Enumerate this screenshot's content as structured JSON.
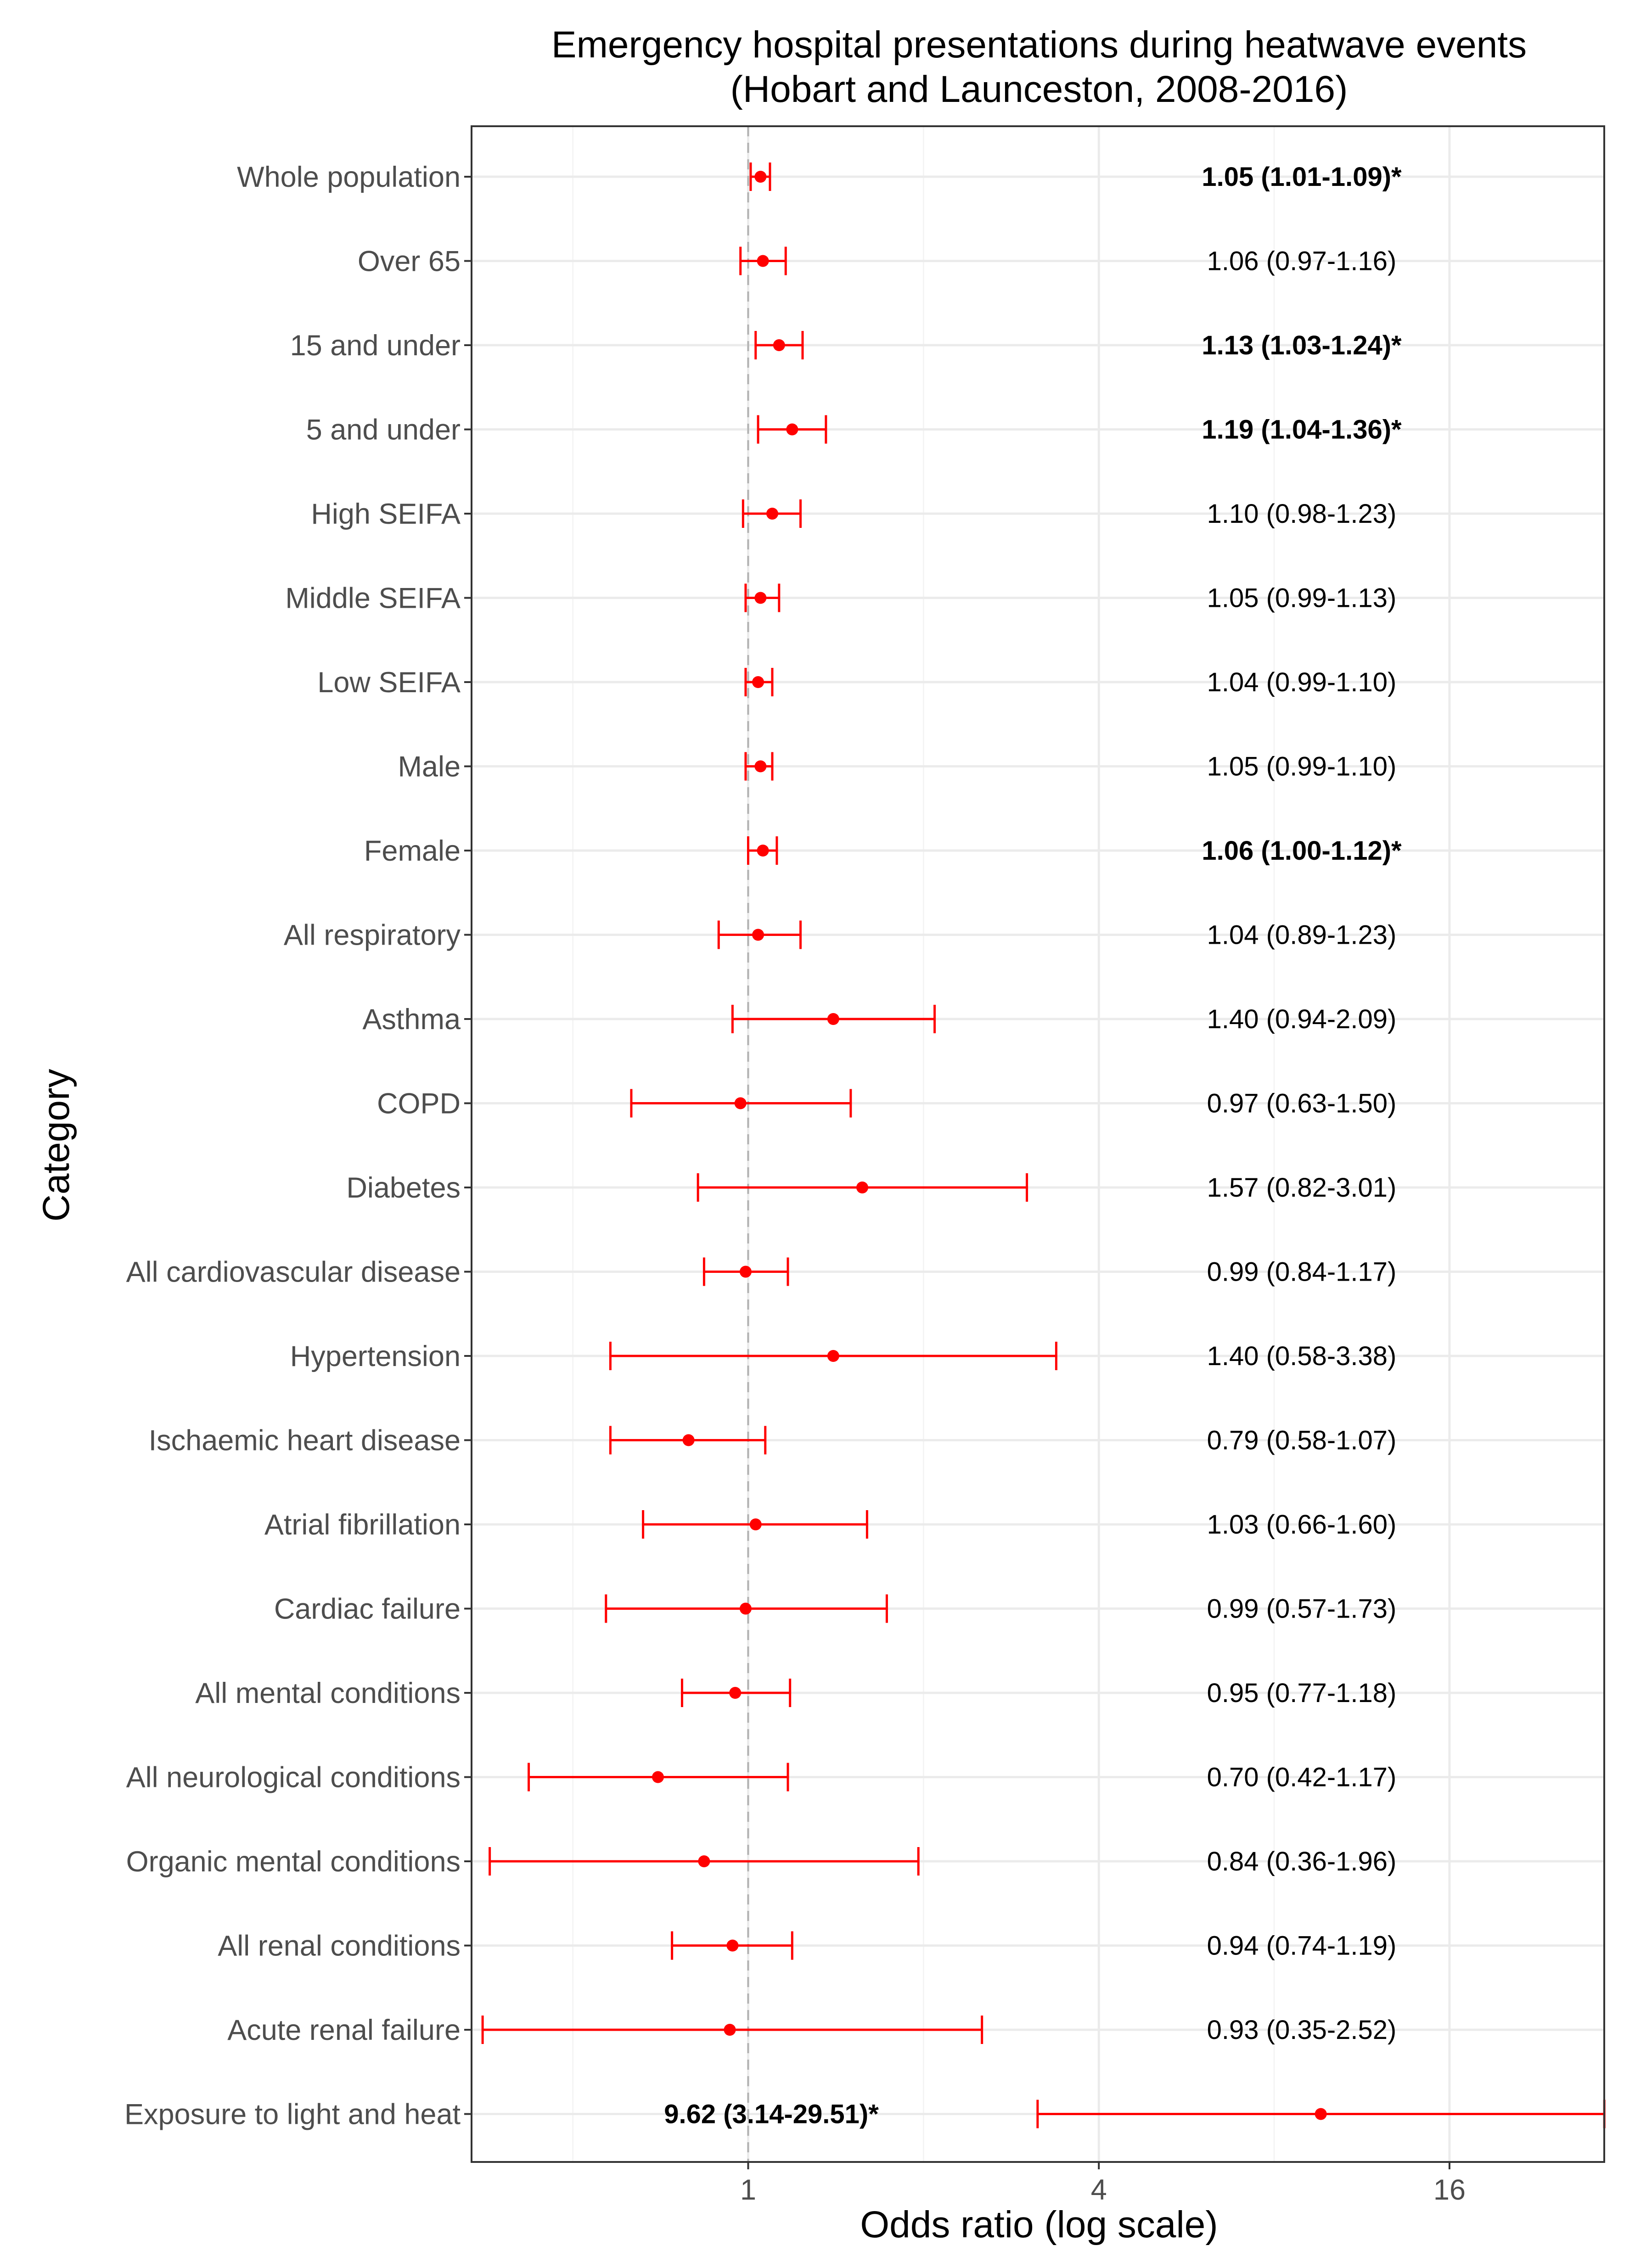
{
  "chart_data": {
    "type": "forest",
    "title_line1": "Emergency hospital presentations during heatwave events",
    "title_line2": "(Hobart and Launceston, 2008-2016)",
    "xlabel": "Odds ratio (log scale)",
    "ylabel": "Category",
    "x_scale": "log2",
    "xlim": [
      0.335,
      29.5
    ],
    "x_ticks": [
      1,
      4,
      16
    ],
    "x_tick_labels": [
      "1",
      "4",
      "16"
    ],
    "reference_line": 1,
    "rows": [
      {
        "category": "Whole population",
        "or": 1.05,
        "lo": 1.01,
        "hi": 1.09,
        "label": "1.05 (1.01-1.09)*",
        "significant": true
      },
      {
        "category": "Over 65",
        "or": 1.06,
        "lo": 0.97,
        "hi": 1.16,
        "label": "1.06 (0.97-1.16)",
        "significant": false
      },
      {
        "category": "15 and under",
        "or": 1.13,
        "lo": 1.03,
        "hi": 1.24,
        "label": "1.13 (1.03-1.24)*",
        "significant": true
      },
      {
        "category": "5 and under",
        "or": 1.19,
        "lo": 1.04,
        "hi": 1.36,
        "label": "1.19 (1.04-1.36)*",
        "significant": true
      },
      {
        "category": "High SEIFA",
        "or": 1.1,
        "lo": 0.98,
        "hi": 1.23,
        "label": "1.10 (0.98-1.23)",
        "significant": false
      },
      {
        "category": "Middle SEIFA",
        "or": 1.05,
        "lo": 0.99,
        "hi": 1.13,
        "label": "1.05 (0.99-1.13)",
        "significant": false
      },
      {
        "category": "Low SEIFA",
        "or": 1.04,
        "lo": 0.99,
        "hi": 1.1,
        "label": "1.04 (0.99-1.10)",
        "significant": false
      },
      {
        "category": "Male",
        "or": 1.05,
        "lo": 0.99,
        "hi": 1.1,
        "label": "1.05 (0.99-1.10)",
        "significant": false
      },
      {
        "category": "Female",
        "or": 1.06,
        "lo": 1.0,
        "hi": 1.12,
        "label": "1.06 (1.00-1.12)*",
        "significant": true
      },
      {
        "category": "All respiratory",
        "or": 1.04,
        "lo": 0.89,
        "hi": 1.23,
        "label": "1.04 (0.89-1.23)",
        "significant": false
      },
      {
        "category": "Asthma",
        "or": 1.4,
        "lo": 0.94,
        "hi": 2.09,
        "label": "1.40 (0.94-2.09)",
        "significant": false
      },
      {
        "category": "COPD",
        "or": 0.97,
        "lo": 0.63,
        "hi": 1.5,
        "label": "0.97 (0.63-1.50)",
        "significant": false
      },
      {
        "category": "Diabetes",
        "or": 1.57,
        "lo": 0.82,
        "hi": 3.01,
        "label": "1.57 (0.82-3.01)",
        "significant": false
      },
      {
        "category": "All cardiovascular disease",
        "or": 0.99,
        "lo": 0.84,
        "hi": 1.17,
        "label": "0.99 (0.84-1.17)",
        "significant": false
      },
      {
        "category": "Hypertension",
        "or": 1.4,
        "lo": 0.58,
        "hi": 3.38,
        "label": "1.40 (0.58-3.38)",
        "significant": false
      },
      {
        "category": "Ischaemic heart disease",
        "or": 0.79,
        "lo": 0.58,
        "hi": 1.07,
        "label": "0.79 (0.58-1.07)",
        "significant": false
      },
      {
        "category": "Atrial fibrillation",
        "or": 1.03,
        "lo": 0.66,
        "hi": 1.6,
        "label": "1.03 (0.66-1.60)",
        "significant": false
      },
      {
        "category": "Cardiac failure",
        "or": 0.99,
        "lo": 0.57,
        "hi": 1.73,
        "label": "0.99 (0.57-1.73)",
        "significant": false
      },
      {
        "category": "All mental conditions",
        "or": 0.95,
        "lo": 0.77,
        "hi": 1.18,
        "label": "0.95 (0.77-1.18)",
        "significant": false
      },
      {
        "category": "All neurological conditions",
        "or": 0.7,
        "lo": 0.42,
        "hi": 1.17,
        "label": "0.70 (0.42-1.17)",
        "significant": false
      },
      {
        "category": "Organic mental conditions",
        "or": 0.84,
        "lo": 0.36,
        "hi": 1.96,
        "label": "0.84 (0.36-1.96)",
        "significant": false
      },
      {
        "category": "All renal conditions",
        "or": 0.94,
        "lo": 0.74,
        "hi": 1.19,
        "label": "0.94 (0.74-1.19)",
        "significant": false
      },
      {
        "category": "Acute renal failure",
        "or": 0.93,
        "lo": 0.35,
        "hi": 2.52,
        "label": "0.93 (0.35-2.52)",
        "significant": false
      },
      {
        "category": "Exposure to light and heat",
        "or": 9.62,
        "lo": 3.14,
        "hi": 29.51,
        "label": "9.62 (3.14-29.51)*",
        "significant": true,
        "label_position": "left"
      }
    ],
    "colors": {
      "point": "#ff0000",
      "errorbar": "#ff0000",
      "grid_major": "#ebebeb",
      "grid_minor": "#f4f4f4",
      "panel_border": "#333333",
      "reference_line": "#b3b3b3",
      "axis_text": "#4d4d4d"
    }
  }
}
